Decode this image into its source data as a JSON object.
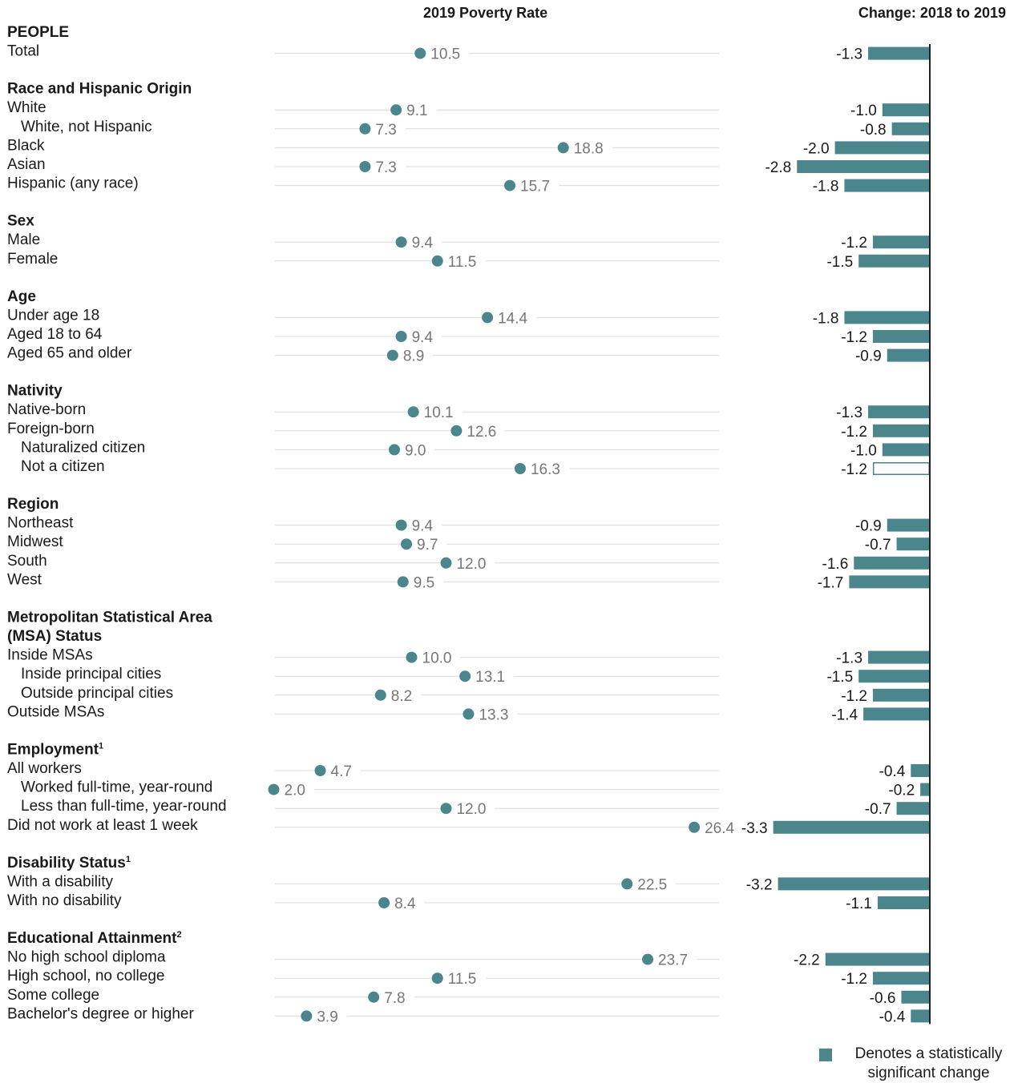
{
  "headers": {
    "left": "2019 Poverty Rate",
    "right": "Change: 2018 to 2019"
  },
  "legend": {
    "line1": "Denotes a statistically",
    "line2": "significant change"
  },
  "colors": {
    "accent": "#4a868c",
    "value_text": "#777777",
    "gridline": "#dcdcdc",
    "axis": "#222222"
  },
  "chart_data": {
    "type": "dot_and_bar",
    "title": "",
    "series": [
      {
        "name": "2019 Poverty Rate",
        "type": "scatter"
      },
      {
        "name": "Change: 2018 to 2019",
        "type": "bar"
      }
    ],
    "xlim_rate": [
      0,
      30
    ],
    "xlim_change": [
      -3.5,
      0
    ],
    "rows": [
      {
        "kind": "group",
        "label": "PEOPLE",
        "sup": ""
      },
      {
        "kind": "item",
        "label": "Total",
        "indent": false,
        "rate": 10.5,
        "rate_label": "10.5",
        "change": -1.3,
        "change_label": "-1.3",
        "significant": true
      },
      {
        "kind": "group",
        "label": "Race and Hispanic Origin",
        "sup": ""
      },
      {
        "kind": "item",
        "label": "White",
        "indent": false,
        "rate": 9.1,
        "rate_label": "9.1",
        "change": -1.0,
        "change_label": "-1.0",
        "significant": true
      },
      {
        "kind": "item",
        "label": "White, not Hispanic",
        "indent": true,
        "rate": 7.3,
        "rate_label": "7.3",
        "change": -0.8,
        "change_label": "-0.8",
        "significant": true
      },
      {
        "kind": "item",
        "label": "Black",
        "indent": false,
        "rate": 18.8,
        "rate_label": "18.8",
        "change": -2.0,
        "change_label": "-2.0",
        "significant": true
      },
      {
        "kind": "item",
        "label": "Asian",
        "indent": false,
        "rate": 7.3,
        "rate_label": "7.3",
        "change": -2.8,
        "change_label": "-2.8",
        "significant": true
      },
      {
        "kind": "item",
        "label": "Hispanic (any race)",
        "indent": false,
        "rate": 15.7,
        "rate_label": "15.7",
        "change": -1.8,
        "change_label": "-1.8",
        "significant": true
      },
      {
        "kind": "group",
        "label": "Sex",
        "sup": ""
      },
      {
        "kind": "item",
        "label": "Male",
        "indent": false,
        "rate": 9.4,
        "rate_label": "9.4",
        "change": -1.2,
        "change_label": "-1.2",
        "significant": true
      },
      {
        "kind": "item",
        "label": "Female",
        "indent": false,
        "rate": 11.5,
        "rate_label": "11.5",
        "change": -1.5,
        "change_label": "-1.5",
        "significant": true
      },
      {
        "kind": "group",
        "label": "Age",
        "sup": ""
      },
      {
        "kind": "item",
        "label": "Under age 18",
        "indent": false,
        "rate": 14.4,
        "rate_label": "14.4",
        "change": -1.8,
        "change_label": "-1.8",
        "significant": true
      },
      {
        "kind": "item",
        "label": "Aged 18 to 64",
        "indent": false,
        "rate": 9.4,
        "rate_label": "9.4",
        "change": -1.2,
        "change_label": "-1.2",
        "significant": true
      },
      {
        "kind": "item",
        "label": "Aged 65 and older",
        "indent": false,
        "rate": 8.9,
        "rate_label": "8.9",
        "change": -0.9,
        "change_label": "-0.9",
        "significant": true
      },
      {
        "kind": "group",
        "label": "Nativity",
        "sup": ""
      },
      {
        "kind": "item",
        "label": "Native-born",
        "indent": false,
        "rate": 10.1,
        "rate_label": "10.1",
        "change": -1.3,
        "change_label": "-1.3",
        "significant": true
      },
      {
        "kind": "item",
        "label": "Foreign-born",
        "indent": false,
        "rate": 12.6,
        "rate_label": "12.6",
        "change": -1.2,
        "change_label": "-1.2",
        "significant": true
      },
      {
        "kind": "item",
        "label": "Naturalized citizen",
        "indent": true,
        "rate": 9.0,
        "rate_label": "9.0",
        "change": -1.0,
        "change_label": "-1.0",
        "significant": true
      },
      {
        "kind": "item",
        "label": "Not a citizen",
        "indent": true,
        "rate": 16.3,
        "rate_label": "16.3",
        "change": -1.2,
        "change_label": "-1.2",
        "significant": false
      },
      {
        "kind": "group",
        "label": "Region",
        "sup": ""
      },
      {
        "kind": "item",
        "label": "Northeast",
        "indent": false,
        "rate": 9.4,
        "rate_label": "9.4",
        "change": -0.9,
        "change_label": "-0.9",
        "significant": true
      },
      {
        "kind": "item",
        "label": "Midwest",
        "indent": false,
        "rate": 9.7,
        "rate_label": "9.7",
        "change": -0.7,
        "change_label": "-0.7",
        "significant": true
      },
      {
        "kind": "item",
        "label": "South",
        "indent": false,
        "rate": 12.0,
        "rate_label": "12.0",
        "change": -1.6,
        "change_label": "-1.6",
        "significant": true
      },
      {
        "kind": "item",
        "label": "West",
        "indent": false,
        "rate": 9.5,
        "rate_label": "9.5",
        "change": -1.7,
        "change_label": "-1.7",
        "significant": true
      },
      {
        "kind": "group",
        "label": "Metropolitan Statistical Area",
        "sup": ""
      },
      {
        "kind": "group",
        "label": "(MSA) Status",
        "sup": ""
      },
      {
        "kind": "item",
        "label": "Inside MSAs",
        "indent": false,
        "rate": 10.0,
        "rate_label": "10.0",
        "change": -1.3,
        "change_label": "-1.3",
        "significant": true
      },
      {
        "kind": "item",
        "label": "Inside principal cities",
        "indent": true,
        "rate": 13.1,
        "rate_label": "13.1",
        "change": -1.5,
        "change_label": "-1.5",
        "significant": true
      },
      {
        "kind": "item",
        "label": "Outside principal cities",
        "indent": true,
        "rate": 8.2,
        "rate_label": "8.2",
        "change": -1.2,
        "change_label": "-1.2",
        "significant": true
      },
      {
        "kind": "item",
        "label": "Outside MSAs",
        "indent": false,
        "rate": 13.3,
        "rate_label": "13.3",
        "change": -1.4,
        "change_label": "-1.4",
        "significant": true
      },
      {
        "kind": "group",
        "label": "Employment",
        "sup": "1"
      },
      {
        "kind": "item",
        "label": "All workers",
        "indent": false,
        "rate": 4.7,
        "rate_label": "4.7",
        "change": -0.4,
        "change_label": "-0.4",
        "significant": true
      },
      {
        "kind": "item",
        "label": "Worked full-time, year-round",
        "indent": true,
        "rate": 2.0,
        "rate_label": "2.0",
        "change": -0.2,
        "change_label": "-0.2",
        "significant": true
      },
      {
        "kind": "item",
        "label": "Less than full-time, year-round",
        "indent": true,
        "rate": 12.0,
        "rate_label": "12.0",
        "change": -0.7,
        "change_label": "-0.7",
        "significant": true
      },
      {
        "kind": "item",
        "label": "Did not work at least 1 week",
        "indent": false,
        "rate": 26.4,
        "rate_label": "26.4",
        "change": -3.3,
        "change_label": "-3.3",
        "significant": true
      },
      {
        "kind": "group",
        "label": "Disability Status",
        "sup": "1"
      },
      {
        "kind": "item",
        "label": "With a disability",
        "indent": false,
        "rate": 22.5,
        "rate_label": "22.5",
        "change": -3.2,
        "change_label": "-3.2",
        "significant": true
      },
      {
        "kind": "item",
        "label": "With no disability",
        "indent": false,
        "rate": 8.4,
        "rate_label": "8.4",
        "change": -1.1,
        "change_label": "-1.1",
        "significant": true
      },
      {
        "kind": "group",
        "label": "Educational Attainment",
        "sup": "2"
      },
      {
        "kind": "item",
        "label": "No high school diploma",
        "indent": false,
        "rate": 23.7,
        "rate_label": "23.7",
        "change": -2.2,
        "change_label": "-2.2",
        "significant": true
      },
      {
        "kind": "item",
        "label": "High school, no college",
        "indent": false,
        "rate": 11.5,
        "rate_label": "11.5",
        "change": -1.2,
        "change_label": "-1.2",
        "significant": true
      },
      {
        "kind": "item",
        "label": "Some college",
        "indent": false,
        "rate": 7.8,
        "rate_label": "7.8",
        "change": -0.6,
        "change_label": "-0.6",
        "significant": true
      },
      {
        "kind": "item",
        "label": "Bachelor's degree or higher",
        "indent": false,
        "rate": 3.9,
        "rate_label": "3.9",
        "change": -0.4,
        "change_label": "-0.4",
        "significant": true
      }
    ]
  }
}
